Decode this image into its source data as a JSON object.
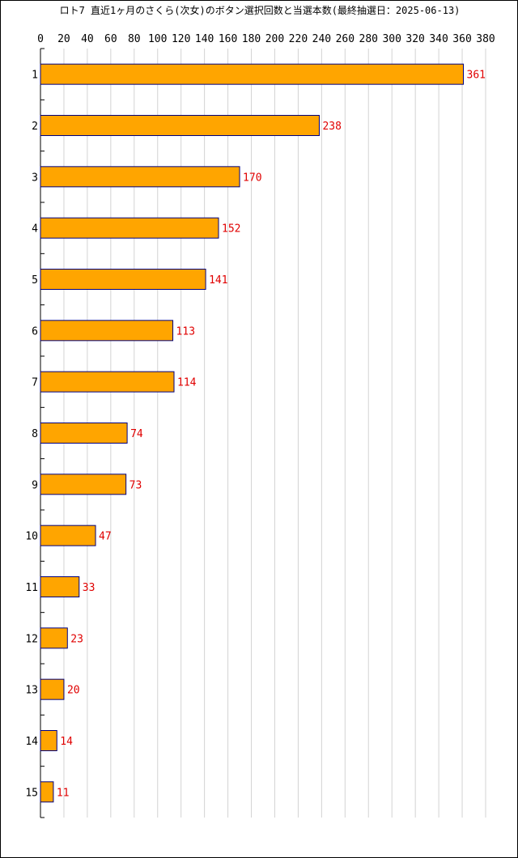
{
  "chart_data": {
    "type": "bar",
    "orientation": "horizontal",
    "title": "ロト7 直近1ヶ月のさくら(次女)のボタン選択回数と当選本数(最終抽選日：2025-06-13)",
    "categories": [
      "1",
      "2",
      "3",
      "4",
      "5",
      "6",
      "7",
      "8",
      "9",
      "10",
      "11",
      "12",
      "13",
      "14",
      "15"
    ],
    "values": [
      361,
      238,
      170,
      152,
      141,
      113,
      114,
      74,
      73,
      47,
      33,
      23,
      20,
      14,
      11
    ],
    "xlim": [
      0,
      380
    ],
    "xticks": [
      0,
      20,
      40,
      60,
      80,
      100,
      120,
      140,
      160,
      180,
      200,
      220,
      240,
      260,
      280,
      300,
      320,
      340,
      360,
      380
    ],
    "grid": true,
    "data_labels": true,
    "colors": {
      "bar_fill": "#FFA500",
      "bar_stroke": "#000080",
      "value_label": "#e00000",
      "grid": "#d3d3d3",
      "axis": "#000000"
    }
  }
}
